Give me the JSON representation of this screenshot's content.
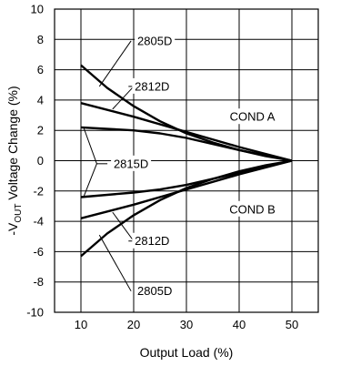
{
  "chart_data": {
    "type": "line",
    "xlabel": "Output Load (%)",
    "ylabel": "-V",
    "ylabel_sub": "OUT",
    "ylabel_rest": " Voltage Change (%)",
    "xlim": [
      5,
      55
    ],
    "ylim": [
      -10,
      10
    ],
    "xticks": [
      10,
      20,
      30,
      40,
      50
    ],
    "yticks": [
      -10,
      -8,
      -6,
      -4,
      -2,
      0,
      2,
      4,
      6,
      8,
      10
    ],
    "grid": true,
    "series": [
      {
        "name": "2805D",
        "group": "COND A",
        "points": [
          [
            10,
            6.3
          ],
          [
            15,
            4.8
          ],
          [
            20,
            3.6
          ],
          [
            25,
            2.6
          ],
          [
            30,
            1.8
          ],
          [
            35,
            1.2
          ],
          [
            40,
            0.7
          ],
          [
            45,
            0.3
          ],
          [
            50,
            0
          ]
        ]
      },
      {
        "name": "2812D",
        "group": "COND A",
        "points": [
          [
            10,
            3.8
          ],
          [
            20,
            2.9
          ],
          [
            30,
            1.9
          ],
          [
            40,
            0.9
          ],
          [
            50,
            0
          ]
        ]
      },
      {
        "name": "2815D",
        "group": "COND A",
        "points": [
          [
            10,
            2.2
          ],
          [
            20,
            2.0
          ],
          [
            25,
            1.8
          ],
          [
            30,
            1.5
          ],
          [
            40,
            0.7
          ],
          [
            50,
            0
          ]
        ]
      },
      {
        "name": "2815D",
        "group": "COND B",
        "points": [
          [
            10,
            -2.4
          ],
          [
            20,
            -2.1
          ],
          [
            25,
            -1.9
          ],
          [
            30,
            -1.6
          ],
          [
            40,
            -0.8
          ],
          [
            50,
            0
          ]
        ]
      },
      {
        "name": "2812D",
        "group": "COND B",
        "points": [
          [
            10,
            -3.8
          ],
          [
            20,
            -2.9
          ],
          [
            30,
            -1.9
          ],
          [
            40,
            -0.9
          ],
          [
            50,
            0
          ]
        ]
      },
      {
        "name": "2805D",
        "group": "COND B",
        "points": [
          [
            10,
            -6.3
          ],
          [
            15,
            -4.8
          ],
          [
            20,
            -3.6
          ],
          [
            25,
            -2.6
          ],
          [
            30,
            -1.8
          ],
          [
            35,
            -1.2
          ],
          [
            40,
            -0.7
          ],
          [
            45,
            -0.3
          ],
          [
            50,
            0
          ]
        ]
      }
    ],
    "annotations": [
      {
        "text": "2805D",
        "x": 24.0,
        "y": 7.9,
        "targets": [
          [
            13.5,
            4.9
          ]
        ],
        "elbow": [
          19.5,
          7.9
        ]
      },
      {
        "text": "2812D",
        "x": 23.5,
        "y": 4.9,
        "targets": [
          [
            16,
            3.4
          ]
        ],
        "elbow": [
          20,
          4.9
        ]
      },
      {
        "text": "COND A",
        "x": 42.5,
        "y": 2.9,
        "targets": []
      },
      {
        "text": "2815D",
        "x": 19.5,
        "y": -0.2,
        "targets": [
          [
            10.5,
            2.2
          ],
          [
            10.5,
            -2.4
          ]
        ],
        "elbow": [
          13,
          -0.2
        ]
      },
      {
        "text": "COND B",
        "x": 42.5,
        "y": -3.2,
        "targets": []
      },
      {
        "text": "2812D",
        "x": 23.5,
        "y": -5.3,
        "targets": [
          [
            16,
            -3.4
          ]
        ],
        "elbow": [
          20,
          -5.3
        ]
      },
      {
        "text": "2805D",
        "x": 24.0,
        "y": -8.6,
        "targets": [
          [
            13.5,
            -4.9
          ]
        ],
        "elbow": [
          19.5,
          -8.6
        ]
      }
    ]
  }
}
